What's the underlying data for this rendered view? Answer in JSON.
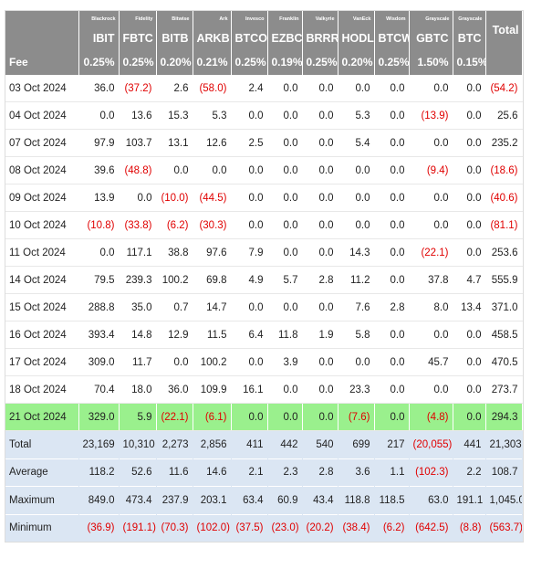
{
  "providers": [
    "Blackrock",
    "Fidelity",
    "Bitwise",
    "Ark",
    "Invesco",
    "Franklin",
    "Valkyrie",
    "VanEck",
    "Wisdom",
    "Grayscale",
    "Grayscale"
  ],
  "tickers": [
    "IBIT",
    "FBTC",
    "BITB",
    "ARKB",
    "BTCO",
    "EZBC",
    "BRRR",
    "HODL",
    "BTCW",
    "GBTC",
    "BTC"
  ],
  "total_label": "Total",
  "fee_label": "Fee",
  "fees": [
    "0.25%",
    "0.25%",
    "0.20%",
    "0.21%",
    "0.25%",
    "0.19%",
    "0.25%",
    "0.20%",
    "0.25%",
    "1.50%",
    "0.15%"
  ],
  "rows": [
    {
      "date": "03 Oct 2024",
      "values": [
        "36.0",
        "(37.2)",
        "2.6",
        "(58.0)",
        "2.4",
        "0.0",
        "0.0",
        "0.0",
        "0.0",
        "0.0",
        "0.0"
      ],
      "total": "(54.2)"
    },
    {
      "date": "04 Oct 2024",
      "values": [
        "0.0",
        "13.6",
        "15.3",
        "5.3",
        "0.0",
        "0.0",
        "0.0",
        "5.3",
        "0.0",
        "(13.9)",
        "0.0"
      ],
      "total": "25.6"
    },
    {
      "date": "07 Oct 2024",
      "values": [
        "97.9",
        "103.7",
        "13.1",
        "12.6",
        "2.5",
        "0.0",
        "0.0",
        "5.4",
        "0.0",
        "0.0",
        "0.0"
      ],
      "total": "235.2"
    },
    {
      "date": "08 Oct 2024",
      "values": [
        "39.6",
        "(48.8)",
        "0.0",
        "0.0",
        "0.0",
        "0.0",
        "0.0",
        "0.0",
        "0.0",
        "(9.4)",
        "0.0"
      ],
      "total": "(18.6)"
    },
    {
      "date": "09 Oct 2024",
      "values": [
        "13.9",
        "0.0",
        "(10.0)",
        "(44.5)",
        "0.0",
        "0.0",
        "0.0",
        "0.0",
        "0.0",
        "0.0",
        "0.0"
      ],
      "total": "(40.6)"
    },
    {
      "date": "10 Oct 2024",
      "values": [
        "(10.8)",
        "(33.8)",
        "(6.2)",
        "(30.3)",
        "0.0",
        "0.0",
        "0.0",
        "0.0",
        "0.0",
        "0.0",
        "0.0"
      ],
      "total": "(81.1)"
    },
    {
      "date": "11 Oct 2024",
      "values": [
        "0.0",
        "117.1",
        "38.8",
        "97.6",
        "7.9",
        "0.0",
        "0.0",
        "14.3",
        "0.0",
        "(22.1)",
        "0.0"
      ],
      "total": "253.6"
    },
    {
      "date": "14 Oct 2024",
      "values": [
        "79.5",
        "239.3",
        "100.2",
        "69.8",
        "4.9",
        "5.7",
        "2.8",
        "11.2",
        "0.0",
        "37.8",
        "4.7"
      ],
      "total": "555.9"
    },
    {
      "date": "15 Oct 2024",
      "values": [
        "288.8",
        "35.0",
        "0.7",
        "14.7",
        "0.0",
        "0.0",
        "0.0",
        "7.6",
        "2.8",
        "8.0",
        "13.4"
      ],
      "total": "371.0"
    },
    {
      "date": "16 Oct 2024",
      "values": [
        "393.4",
        "14.8",
        "12.9",
        "11.5",
        "6.4",
        "11.8",
        "1.9",
        "5.8",
        "0.0",
        "0.0",
        "0.0"
      ],
      "total": "458.5"
    },
    {
      "date": "17 Oct 2024",
      "values": [
        "309.0",
        "11.7",
        "0.0",
        "100.2",
        "0.0",
        "3.9",
        "0.0",
        "0.0",
        "0.0",
        "45.7",
        "0.0"
      ],
      "total": "470.5"
    },
    {
      "date": "18 Oct 2024",
      "values": [
        "70.4",
        "18.0",
        "36.0",
        "109.9",
        "16.1",
        "0.0",
        "0.0",
        "23.3",
        "0.0",
        "0.0",
        "0.0"
      ],
      "total": "273.7"
    },
    {
      "date": "21 Oct 2024",
      "values": [
        "329.0",
        "5.9",
        "(22.1)",
        "(6.1)",
        "0.0",
        "0.0",
        "0.0",
        "(7.6)",
        "0.0",
        "(4.8)",
        "0.0"
      ],
      "total": "294.3",
      "highlight": true
    }
  ],
  "summary": [
    {
      "label": "Total",
      "values": [
        "23,169",
        "10,310",
        "2,273",
        "2,856",
        "411",
        "442",
        "540",
        "699",
        "217",
        "(20,055)",
        "441"
      ],
      "total": "21,303"
    },
    {
      "label": "Average",
      "values": [
        "118.2",
        "52.6",
        "11.6",
        "14.6",
        "2.1",
        "2.3",
        "2.8",
        "3.6",
        "1.1",
        "(102.3)",
        "2.2"
      ],
      "total": "108.7"
    },
    {
      "label": "Maximum",
      "values": [
        "849.0",
        "473.4",
        "237.9",
        "203.1",
        "63.4",
        "60.9",
        "43.4",
        "118.8",
        "118.5",
        "63.0",
        "191.1"
      ],
      "total": "1,045.0"
    },
    {
      "label": "Minimum",
      "values": [
        "(36.9)",
        "(191.1)",
        "(70.3)",
        "(102.0)",
        "(37.5)",
        "(23.0)",
        "(20.2)",
        "(38.4)",
        "(6.2)",
        "(642.5)",
        "(8.8)"
      ],
      "total": "(563.7)"
    }
  ],
  "colors": {
    "header_bg": "#8c8c8c",
    "header_text": "#ffffff",
    "negative": "#e00000",
    "highlight_row": "#9af08d",
    "summary_bg": "#dbe6f3"
  }
}
